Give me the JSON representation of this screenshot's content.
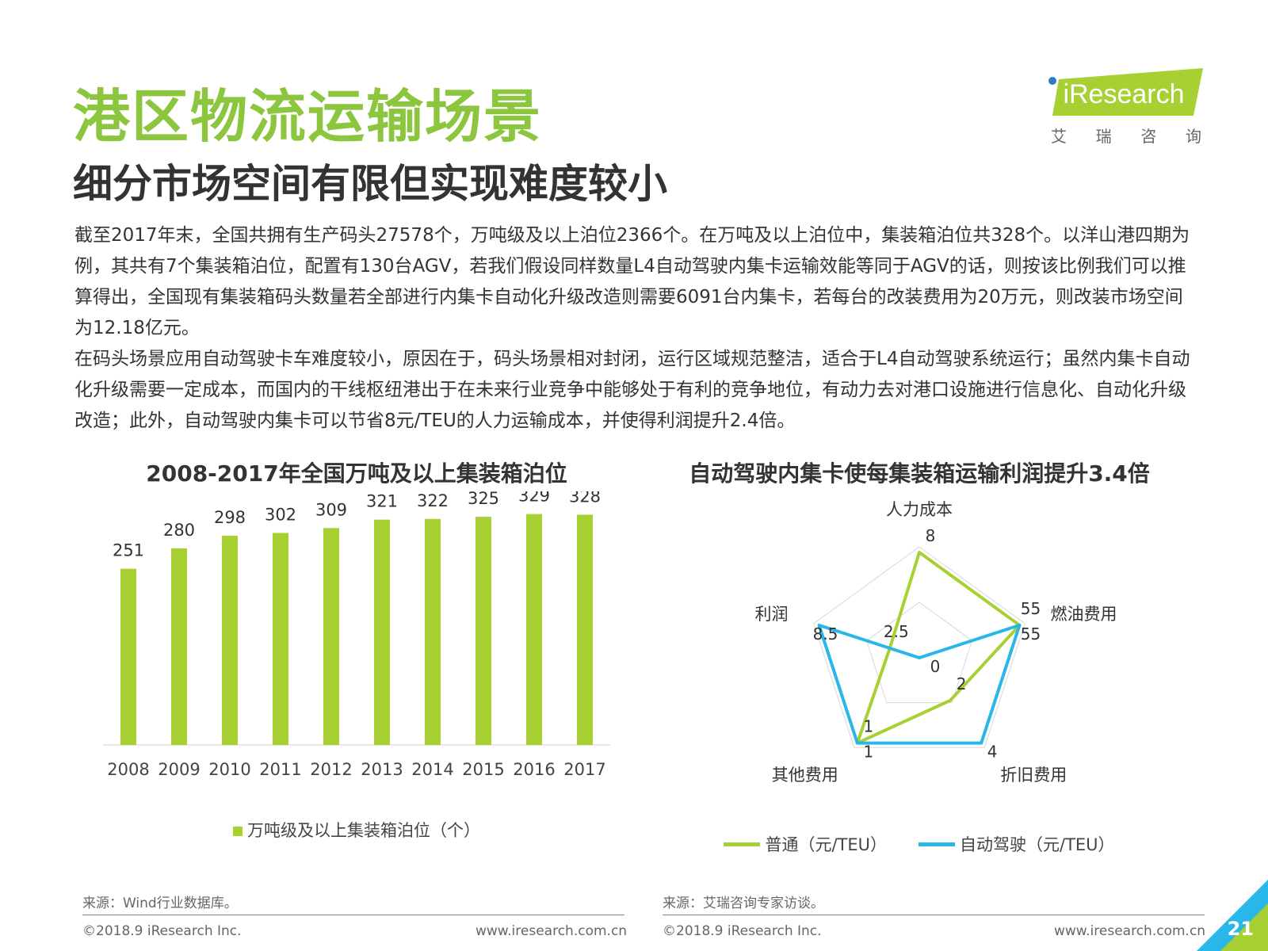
{
  "header": {
    "title": "港区物流运输场景",
    "subtitle": "细分市场空间有限但实现难度较小"
  },
  "logo": {
    "brand_text": "iResearch",
    "cn_chars": [
      "艾",
      "瑞",
      "咨",
      "询"
    ],
    "accent_color": "#a7d032"
  },
  "body": {
    "paragraph1": "截至2017年末，全国共拥有生产码头27578个，万吨级及以上泊位2366个。在万吨及以上泊位中，集装箱泊位共328个。以洋山港四期为例，其共有7个集装箱泊位，配置有130台AGV，若我们假设同样数量L4自动驾驶内集卡运输效能等同于AGV的话，则按该比例我们可以推算得出，全国现有集装箱码头数量若全部进行内集卡自动化升级改造则需要6091台内集卡，若每台的改装费用为20万元，则改装市场空间为12.18亿元。",
    "paragraph2": "在码头场景应用自动驾驶卡车难度较小，原因在于，码头场景相对封闭，运行区域规范整洁，适合于L4自动驾驶系统运行；虽然内集卡自动化升级需要一定成本，而国内的干线枢纽港出于在未来行业竞争中能够处于有利的竞争地位，有动力去对港口设施进行信息化、自动化升级改造；此外，自动驾驶内集卡可以节省8元/TEU的人力运输成本，并使得利润提升2.4倍。"
  },
  "bar_chart": {
    "title": "2008-2017年全国万吨及以上集装箱泊位",
    "legend": "万吨级及以上集装箱泊位（个）",
    "source": "来源：Wind行业数据库。"
  },
  "radar_chart": {
    "title": "自动驾驶内集卡使每集装箱运输利润提升3.4倍",
    "legend_normal": "普通（元/TEU）",
    "legend_auto": "自动驾驶（元/TEU）",
    "source": "来源：艾瑞咨询专家访谈。"
  },
  "chart_data": [
    {
      "type": "bar",
      "title": "2008-2017年全国万吨及以上集装箱泊位",
      "categories": [
        "2008",
        "2009",
        "2010",
        "2011",
        "2012",
        "2013",
        "2014",
        "2015",
        "2016",
        "2017"
      ],
      "series": [
        {
          "name": "万吨级及以上集装箱泊位（个）",
          "values": [
            251,
            280,
            298,
            302,
            309,
            321,
            322,
            325,
            329,
            328
          ],
          "color": "#a7d032"
        }
      ],
      "ylim": [
        0,
        350
      ],
      "legend_position": "bottom",
      "grid": false
    },
    {
      "type": "radar",
      "title": "自动驾驶内集卡使每集装箱运输利润提升3.4倍",
      "axes": [
        "人力成本",
        "燃油费用",
        "折旧费用",
        "其他费用",
        "利润"
      ],
      "series": [
        {
          "name": "普通（元/TEU）",
          "values": [
            8,
            55,
            2,
            1,
            2.5
          ],
          "color": "#a7d032"
        },
        {
          "name": "自动驾驶（元/TEU）",
          "values": [
            0,
            55,
            4,
            1,
            8.5
          ],
          "color": "#29b6e8"
        }
      ],
      "legend_position": "bottom"
    }
  ],
  "footer": {
    "copyright": "©2018.9 iResearch Inc.",
    "website": "www.iresearch.com.cn",
    "page_number": "21"
  }
}
